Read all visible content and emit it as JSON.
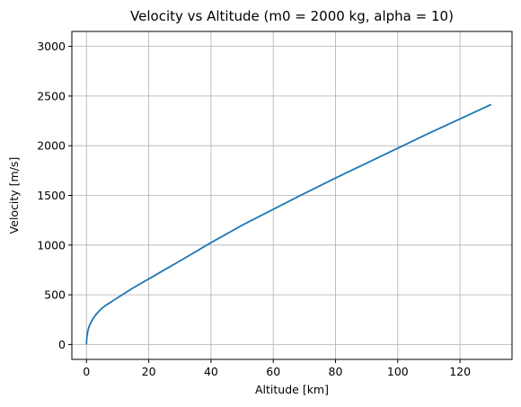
{
  "chart_data": {
    "type": "line",
    "title": "Velocity vs Altitude (m0 = 2000 kg, alpha = 10)",
    "xlabel": "Altitude [km]",
    "ylabel": "Velocity [m/s]",
    "xlim": [
      -4.7,
      136.7
    ],
    "ylim": [
      -150,
      3150
    ],
    "xticks": [
      0,
      20,
      40,
      60,
      80,
      100,
      120
    ],
    "yticks": [
      0,
      500,
      1000,
      1500,
      2000,
      2500,
      3000
    ],
    "xtick_labels": [
      "0",
      "20",
      "40",
      "60",
      "80",
      "100",
      "120"
    ],
    "ytick_labels": [
      "0",
      "500",
      "1000",
      "1500",
      "2000",
      "2500",
      "3000"
    ],
    "grid": true,
    "colors": {
      "series": "#1f77b4",
      "grid": "#b0b0b0",
      "axes": "#000000"
    },
    "series": [
      {
        "x": [
          0,
          0.05,
          0.2,
          0.5,
          1,
          2,
          3,
          4,
          5,
          6,
          7,
          8,
          10,
          12,
          15,
          20,
          25,
          30,
          40,
          50,
          60,
          70,
          80,
          90,
          100,
          110,
          120,
          130
        ],
        "y": [
          0,
          45,
          95,
          145,
          195,
          255,
          300,
          335,
          365,
          390,
          410,
          430,
          470,
          510,
          570,
          660,
          750,
          840,
          1025,
          1200,
          1360,
          1520,
          1675,
          1825,
          1975,
          2125,
          2270,
          2415
        ],
        "values_note": ""
      }
    ]
  }
}
